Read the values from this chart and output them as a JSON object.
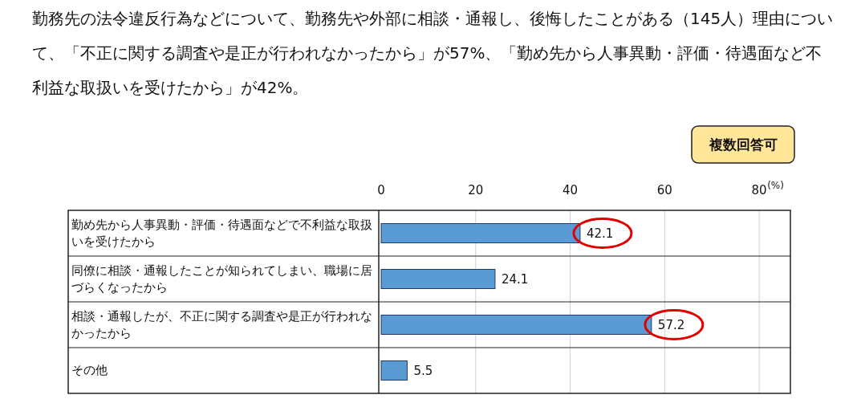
{
  "chart_data": {
    "type": "bar",
    "orientation": "horizontal",
    "title": "勤務先の法令違反行為などについて、勤務先や外部に相談・通報し、後悔したことがある（145人）理由について、「不正に関する調査や是正が行われなかったから」が57%、「勤め先から人事異動・評価・待遇面など不利益な取扱いを受けたから」が42%。",
    "annotations": [
      "複数回答可"
    ],
    "xlabel": "(%)",
    "categories": [
      "勤め先から人事異動・評価・待遇面などで不利益な取扱いを受けたから",
      "同僚に相談・通報したことが知られてしまい、職場に居づらくなったから",
      "相談・通報したが、不正に関する調査や是正が行われなかったから",
      "その他"
    ],
    "values": [
      42.1,
      24.1,
      57.2,
      5.5
    ],
    "color": "#5b9bd5",
    "xlim": [
      0,
      86.6
    ],
    "xticks": [
      0,
      20,
      40,
      60,
      80
    ],
    "grid": "x",
    "data_labels": true
  }
}
